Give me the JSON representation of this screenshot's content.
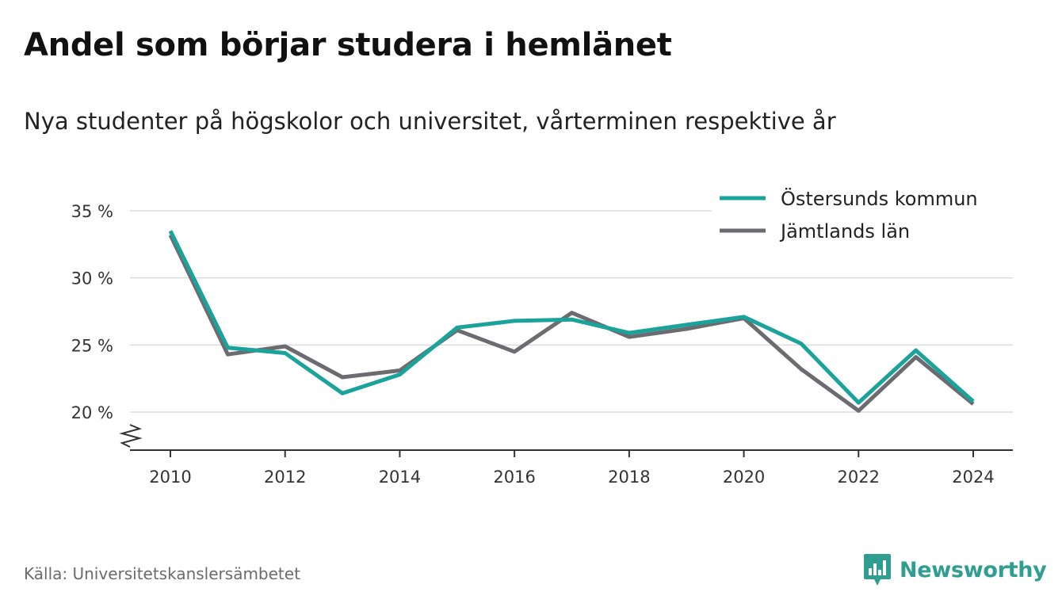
{
  "title": "Andel som börjar studera i hemlänet",
  "subtitle": "Nya studenter på högskolor och universitet, vårterminen respektive år",
  "source": "Källa: Universitetskanslersämbetet",
  "brand": {
    "name": "Newsworthy",
    "icon": "bar-chart-speech-bubble-icon",
    "color": "#2f9e91"
  },
  "chart_data": {
    "type": "line",
    "xlim": [
      2010,
      2024
    ],
    "ylim": [
      17,
      35
    ],
    "y_axis_broken": true,
    "x_ticks": [
      "2010",
      "2012",
      "2014",
      "2016",
      "2018",
      "2020",
      "2022",
      "2024"
    ],
    "y_ticks": [
      {
        "value": 20,
        "label": "20 %"
      },
      {
        "value": 25,
        "label": "25 %"
      },
      {
        "value": 30,
        "label": "30 %"
      },
      {
        "value": 35,
        "label": "35 %"
      }
    ],
    "grid": "horizontal",
    "legend_position": "top-right",
    "x": [
      2010,
      2011,
      2012,
      2013,
      2014,
      2015,
      2016,
      2017,
      2018,
      2019,
      2020,
      2021,
      2022,
      2023,
      2024
    ],
    "series": [
      {
        "name": "Östersunds kommun",
        "color": "#1aa39a",
        "values": [
          33.5,
          24.8,
          24.4,
          21.4,
          22.8,
          26.3,
          26.8,
          26.9,
          25.9,
          26.5,
          27.1,
          25.1,
          20.7,
          24.6,
          20.8
        ]
      },
      {
        "name": "Jämtlands län",
        "color": "#6b6b70",
        "values": [
          33.2,
          24.3,
          24.9,
          22.6,
          23.1,
          26.1,
          24.5,
          27.4,
          25.6,
          26.2,
          27.0,
          23.2,
          20.1,
          24.1,
          20.6
        ]
      }
    ]
  }
}
